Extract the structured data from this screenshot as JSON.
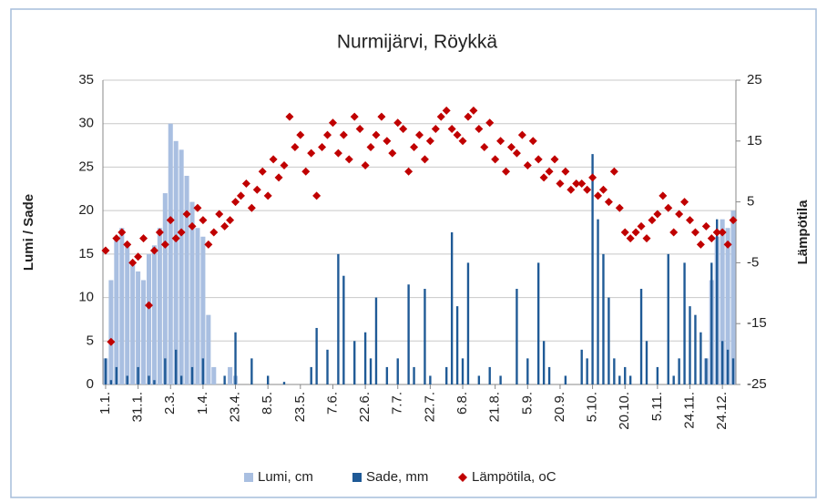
{
  "chart_data": {
    "type": "bar_line",
    "title": "Nurmijärvi, Röykkä",
    "ylabel": "Lumi / Sade",
    "y2label": "Lämpötila",
    "categories": [
      "1.1.",
      null,
      null,
      null,
      null,
      null,
      "31.1.",
      null,
      null,
      null,
      null,
      null,
      "2.3.",
      null,
      null,
      null,
      null,
      null,
      "1.4.",
      null,
      null,
      null,
      null,
      null,
      "23.4.",
      null,
      null,
      null,
      null,
      null,
      "8.5.",
      null,
      null,
      null,
      null,
      null,
      "23.5.",
      null,
      null,
      null,
      null,
      null,
      "7.6.",
      null,
      null,
      null,
      null,
      null,
      "22.6.",
      null,
      null,
      null,
      null,
      null,
      "7.7.",
      null,
      null,
      null,
      null,
      null,
      "22.7.",
      null,
      null,
      null,
      null,
      null,
      "6.8.",
      null,
      null,
      null,
      null,
      null,
      "21.8.",
      null,
      null,
      null,
      null,
      null,
      "5.9.",
      null,
      null,
      null,
      null,
      null,
      "20.9.",
      null,
      null,
      null,
      null,
      null,
      "5.10.",
      null,
      null,
      null,
      null,
      null,
      "20.10.",
      null,
      null,
      null,
      null,
      null,
      "5.11.",
      null,
      null,
      null,
      null,
      null,
      "24.11.",
      null,
      null,
      null,
      null,
      null,
      "24.12.",
      null,
      null
    ],
    "series": [
      {
        "name": "Lumi, cm",
        "color": "#a9bfe1",
        "kind": "bar",
        "values": [
          3,
          12,
          17,
          18,
          16,
          14,
          13,
          12,
          15,
          16,
          18,
          22,
          30,
          28,
          27,
          24,
          21,
          18,
          17,
          8,
          2,
          0,
          0,
          2,
          1,
          0,
          0,
          0,
          0,
          0,
          0,
          0,
          0,
          0,
          0,
          0,
          0,
          0,
          0,
          0,
          0,
          0,
          0,
          0,
          0,
          0,
          0,
          0,
          0,
          0,
          0,
          0,
          0,
          0,
          0,
          0,
          0,
          0,
          0,
          0,
          0,
          0,
          0,
          0,
          0,
          0,
          0,
          0,
          0,
          0,
          0,
          0,
          0,
          0,
          0,
          0,
          0,
          0,
          0,
          0,
          0,
          0,
          0,
          0,
          0,
          0,
          0,
          0,
          0,
          0,
          0,
          0,
          0,
          0,
          0,
          0,
          0,
          0,
          0,
          0,
          0,
          0,
          0,
          0,
          0,
          0,
          0,
          0,
          0,
          0,
          0,
          3,
          12,
          17,
          19,
          18,
          20
        ]
      },
      {
        "name": "Sade, mm",
        "color": "#1f5a96",
        "kind": "bar",
        "values": [
          3,
          0.5,
          2,
          0,
          1,
          0,
          2,
          0,
          1,
          0.5,
          0,
          3,
          0,
          4,
          1,
          0,
          2,
          0,
          3,
          0,
          0,
          0,
          1,
          0,
          6,
          0,
          0,
          3,
          0,
          0,
          1,
          0,
          0,
          0.3,
          0,
          0,
          0,
          0,
          2,
          6.5,
          0,
          4,
          0,
          15,
          12.5,
          0,
          5,
          0,
          6,
          3,
          10,
          0,
          2,
          0,
          3,
          0,
          11.5,
          2,
          0,
          11,
          1,
          0,
          0,
          2,
          17.5,
          9,
          3,
          14,
          0,
          1,
          0,
          2,
          0,
          1,
          0,
          0,
          11,
          0,
          3,
          0,
          14,
          5,
          2,
          0,
          0,
          1,
          0,
          0,
          4,
          3,
          26.5,
          19,
          15,
          10,
          3,
          1,
          2,
          1,
          0,
          11,
          5,
          0,
          2,
          0,
          15,
          1,
          3,
          14,
          9,
          8,
          6,
          3,
          14,
          19,
          5,
          4,
          3
        ]
      },
      {
        "name": "Lämpötila, oC",
        "color": "#c00000",
        "kind": "scatter",
        "axis": "y2",
        "values": [
          -3,
          -18,
          -1,
          0,
          -2,
          -5,
          -4,
          -1,
          -12,
          -3,
          0,
          -2,
          2,
          -1,
          0,
          3,
          1,
          4,
          2,
          -2,
          0,
          3,
          1,
          2,
          5,
          6,
          8,
          4,
          7,
          10,
          6,
          12,
          9,
          11,
          19,
          14,
          16,
          10,
          13,
          6,
          14,
          16,
          18,
          13,
          16,
          12,
          19,
          17,
          11,
          14,
          16,
          19,
          15,
          13,
          18,
          17,
          10,
          14,
          16,
          12,
          15,
          17,
          19,
          20,
          17,
          16,
          15,
          19,
          20,
          17,
          14,
          18,
          12,
          15,
          10,
          14,
          13,
          16,
          11,
          15,
          12,
          9,
          10,
          12,
          8,
          10,
          7,
          8,
          8,
          7,
          9,
          6,
          7,
          5,
          10,
          4,
          0,
          -1,
          0,
          1,
          -1,
          2,
          3,
          6,
          4,
          0,
          3,
          5,
          2,
          0,
          -2,
          1,
          -1,
          0,
          0,
          -2,
          2
        ]
      }
    ],
    "ylim": [
      0,
      35
    ],
    "yticks": [
      0,
      5,
      10,
      15,
      20,
      25,
      30,
      35
    ],
    "y2lim": [
      -25,
      25
    ],
    "y2ticks": [
      -25,
      -15,
      -5,
      5,
      15,
      25
    ],
    "grid": true,
    "legend": "bottom"
  }
}
